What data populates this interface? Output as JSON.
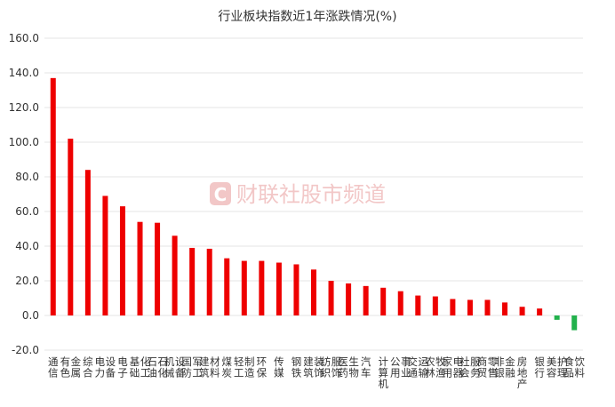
{
  "chart_data": {
    "type": "bar",
    "title": "行业板块指数近1年涨跌情况(%)",
    "xlabel": "",
    "ylabel": "",
    "ylim": [
      -20,
      160
    ],
    "yticks": [
      -20,
      0,
      20,
      40,
      60,
      80,
      100,
      120,
      140,
      160
    ],
    "ytick_labels": [
      "-20.0",
      "0.0",
      "20.0",
      "40.0",
      "60.0",
      "80.0",
      "100.0",
      "120.0",
      "140.0",
      "160.0"
    ],
    "grid": "horizontal",
    "categories": [
      "通信",
      "有色金属",
      "综合",
      "电力设备",
      "电子",
      "基础化工",
      "石油石化",
      "机械设备",
      "国防军工",
      "建筑材料",
      "煤炭",
      "轻工制造",
      "环保",
      "传媒",
      "钢铁",
      "建筑装饰",
      "纺织服饰",
      "医药生物",
      "汽车",
      "计算机",
      "公用事业",
      "交通运输",
      "农林牧渔",
      "家用电器",
      "社会服务",
      "商贸零售",
      "非银金融",
      "房地产",
      "银行",
      "美容护理",
      "食品饮料"
    ],
    "values": [
      137,
      102,
      84,
      69,
      63,
      54,
      53.5,
      46,
      39,
      38.5,
      33,
      31.5,
      31.5,
      30.5,
      29.5,
      26.5,
      20,
      18.5,
      17,
      16,
      14,
      11.5,
      11,
      9.5,
      9,
      9,
      7.5,
      5,
      4,
      -2.5,
      -8.5
    ],
    "colors": {
      "positive": "#ee0000",
      "negative": "#22b14c"
    }
  },
  "watermark": {
    "logo_glyph": "C",
    "text": "财联社股市频道",
    "color": "#f2c7c7"
  }
}
